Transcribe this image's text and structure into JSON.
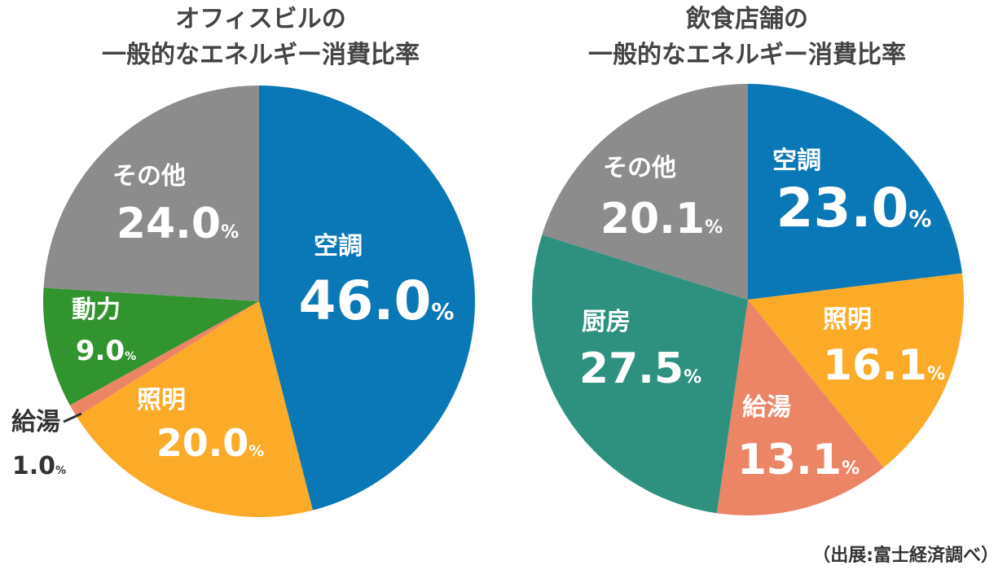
{
  "chart_data": [
    {
      "type": "pie",
      "title_lines": [
        "オフィスビルの",
        "一般的なエネルギー消費比率"
      ],
      "colors": [
        "#0a77b6",
        "#fbab28",
        "#ec8466",
        "#31942e",
        "#8d8c8c"
      ],
      "slices": [
        {
          "name": "空調",
          "value": 46.0,
          "display": "46.0",
          "unit": "%"
        },
        {
          "name": "照明",
          "value": 20.0,
          "display": "20.0",
          "unit": "%"
        },
        {
          "name": "給湯",
          "value": 1.0,
          "display": "1.0",
          "unit": "%"
        },
        {
          "name": "動力",
          "value": 9.0,
          "display": "9.0",
          "unit": "%"
        },
        {
          "name": "その他",
          "value": 24.0,
          "display": "24.0",
          "unit": "%"
        }
      ]
    },
    {
      "type": "pie",
      "title_lines": [
        "飲食店舗の",
        "一般的なエネルギー消費比率"
      ],
      "colors": [
        "#0a77b6",
        "#fbab28",
        "#ec8466",
        "#2e9180",
        "#8d8c8c"
      ],
      "slices": [
        {
          "name": "空調",
          "value": 23.0,
          "display": "23.0",
          "unit": "%"
        },
        {
          "name": "照明",
          "value": 16.1,
          "display": "16.1",
          "unit": "%"
        },
        {
          "name": "給湯",
          "value": 13.1,
          "display": "13.1",
          "unit": "%"
        },
        {
          "name": "厨房",
          "value": 27.5,
          "display": "27.5",
          "unit": "%"
        },
        {
          "name": "その他",
          "value": 20.1,
          "display": "20.1",
          "unit": "%"
        }
      ]
    }
  ],
  "source_note": "（出展:富士経済調べ）"
}
